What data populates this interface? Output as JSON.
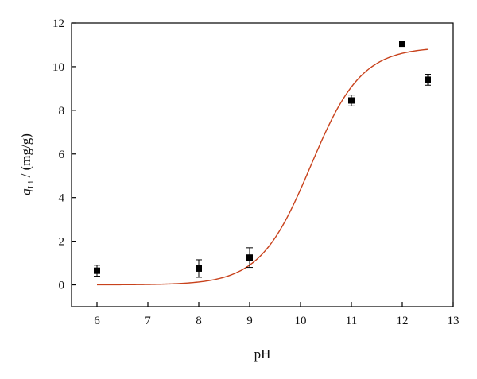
{
  "chart_data": {
    "type": "scatter",
    "xlabel": "pH",
    "ylabel_main": "q",
    "ylabel_sub": "Li",
    "ylabel_unit": " / (mg/g)",
    "xlim": [
      5.5,
      13
    ],
    "ylim": [
      -1,
      12
    ],
    "xticks": [
      6,
      7,
      8,
      9,
      10,
      11,
      12,
      13
    ],
    "yticks": [
      0,
      2,
      4,
      6,
      8,
      10,
      12
    ],
    "grid": false,
    "series": [
      {
        "marker": "square",
        "color": "#000000",
        "points": [
          {
            "x": 6,
            "y": 0.65,
            "err": 0.25
          },
          {
            "x": 8,
            "y": 0.75,
            "err": 0.4
          },
          {
            "x": 9,
            "y": 1.25,
            "err": 0.45
          },
          {
            "x": 11,
            "y": 8.45,
            "err": 0.25
          },
          {
            "x": 12,
            "y": 11.05,
            "err": 0.1
          },
          {
            "x": 12.5,
            "y": 9.4,
            "err": 0.25
          }
        ]
      },
      {
        "line": "fit",
        "color": "#c8421c",
        "model": "logistic",
        "params": {
          "A1": 0,
          "A2": 10.9,
          "x0": 10.2,
          "k": 0.5
        },
        "x_range": [
          6,
          12.5
        ]
      }
    ]
  }
}
